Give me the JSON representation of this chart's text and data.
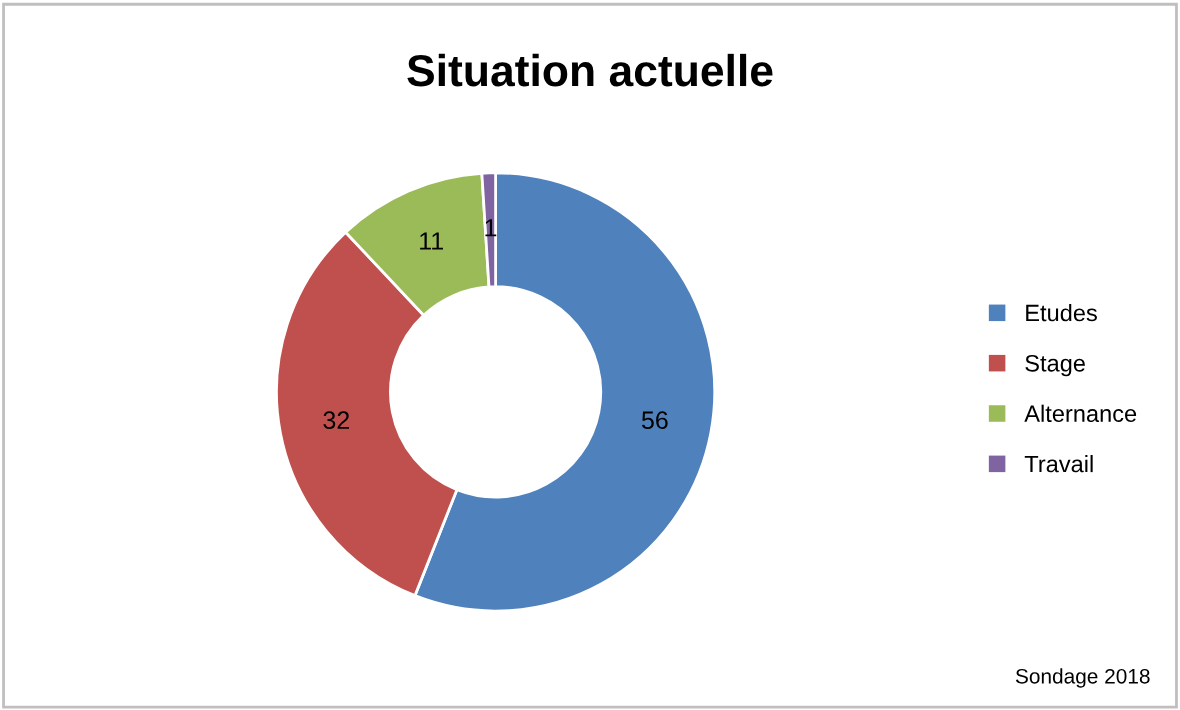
{
  "chart_data": {
    "type": "donut",
    "title": "Situation actuelle",
    "categories": [
      "Etudes",
      "Stage",
      "Alternance",
      "Travail"
    ],
    "values": [
      56,
      32,
      11,
      1
    ],
    "colors": [
      "#4f81bd",
      "#c0504d",
      "#9bbb59",
      "#8064a2"
    ],
    "data_labels": true,
    "legend": "right",
    "annotations": [
      "Sondage 2018"
    ]
  }
}
